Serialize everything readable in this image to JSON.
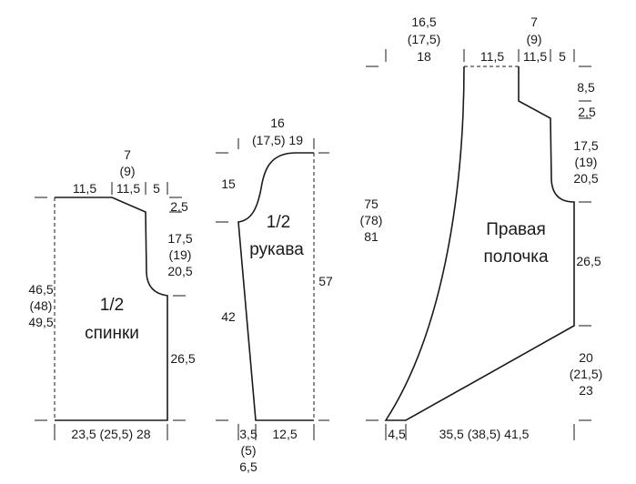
{
  "back": {
    "title_line1": "1/2",
    "title_line2": "спинки",
    "neck_width_top": "7",
    "neck_width_mid": "(9)",
    "shoulder_width": "11,5",
    "neck_width_low": "11,5",
    "shoulder_offset": "5",
    "neck_depth": "2,5",
    "armhole_1": "17,5",
    "armhole_2": "(19)",
    "armhole_3": "20,5",
    "total_height_1": "46,5",
    "total_height_2": "(48)",
    "total_height_3": "49,5",
    "side_height": "26,5",
    "bottom_width": "23,5 (25,5) 28"
  },
  "sleeve": {
    "title_line1": "1/2",
    "title_line2": "рукава",
    "top_width_1": "16",
    "top_width_2": "(17,5) 19",
    "cap_height": "15",
    "side_length": "42",
    "total_length": "57",
    "bottom_offset_1": "3,5",
    "bottom_offset_2": "(5)",
    "bottom_offset_3": "6,5",
    "cuff_width": "12,5"
  },
  "front": {
    "title_line1": "Правая",
    "title_line2": "полочка",
    "left_width_1": "16,5",
    "left_width_2": "(17,5)",
    "left_width_3": "18",
    "neck_top_1": "7",
    "neck_top_2": "(9)",
    "shoulder_width": "11,5",
    "neck_width_low": "11,5",
    "shoulder_offset": "5",
    "shoulder_slope": "8,5",
    "neck_depth": "2,5",
    "armhole_1": "17,5",
    "armhole_2": "(19)",
    "armhole_3": "20,5",
    "side_height": "26,5",
    "total_height_1": "75",
    "total_height_2": "(78)",
    "total_height_3": "81",
    "slant_1": "20",
    "slant_2": "(21,5)",
    "slant_3": "23",
    "bottom_left": "4,5",
    "bottom_width": "35,5 (38,5) 41,5"
  }
}
